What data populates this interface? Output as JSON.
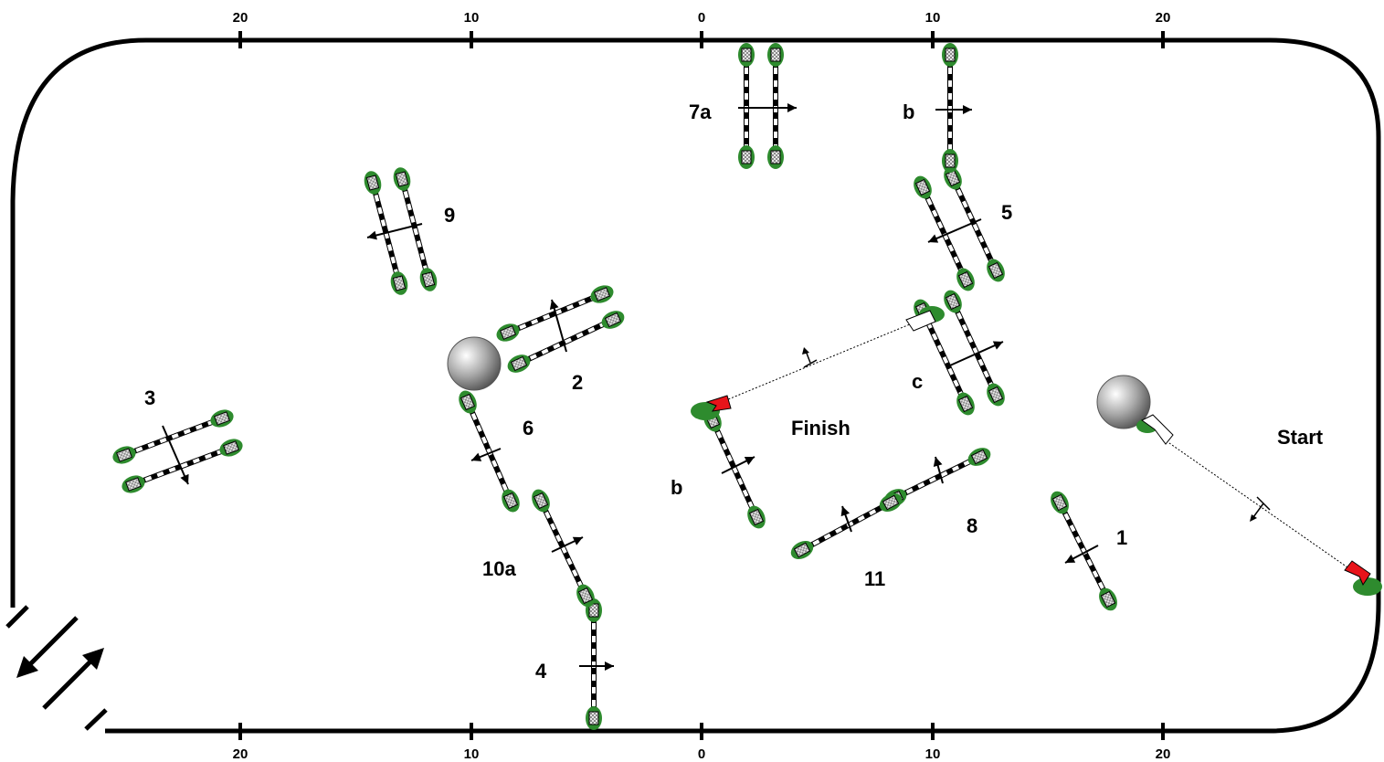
{
  "arena": {
    "top_ticks": [
      "20",
      "10",
      "0",
      "10",
      "20"
    ],
    "bottom_ticks": [
      "20",
      "10",
      "0",
      "10",
      "20"
    ],
    "entrance": "entrance-arrows-icon"
  },
  "labels": {
    "start": "Start",
    "finish": "Finish",
    "j1": "1",
    "j2": "2",
    "j3": "3",
    "j4": "4",
    "j5": "5",
    "j6": "6",
    "j7a": "7a",
    "j7b": "b",
    "j7c": "c",
    "j8": "8",
    "j9": "9",
    "j10a": "10a",
    "j10b": "b",
    "j11": "11"
  },
  "colors": {
    "flag": "#e8141a",
    "greenery": "#2e8b2e",
    "line": "#000000",
    "wing": "#b8b8b8"
  }
}
